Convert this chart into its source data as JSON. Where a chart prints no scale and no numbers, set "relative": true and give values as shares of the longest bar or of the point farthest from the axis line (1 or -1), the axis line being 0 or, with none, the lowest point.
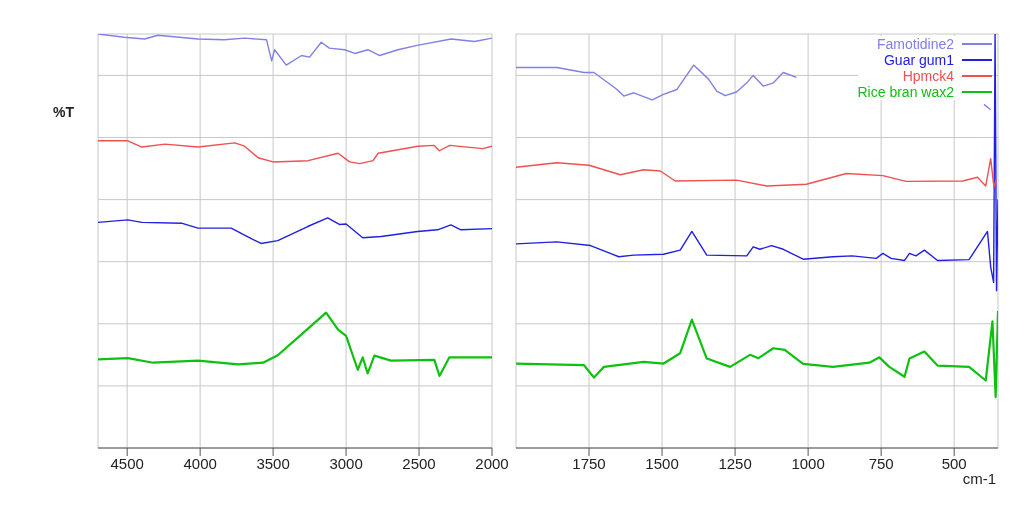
{
  "chart_data": [
    {
      "type": "line",
      "relative": true,
      "ylabel": "%T",
      "xlim": [
        4700,
        2000
      ],
      "xticks": [
        4500,
        4000,
        3500,
        3000,
        2500,
        2000
      ],
      "grid": true,
      "marker": "none",
      "tick_labels": "x",
      "series": [
        {
          "color": "#8080e8",
          "x": [
            4700,
            4520,
            4380,
            4290,
            4015,
            3835,
            3695,
            3545,
            3510,
            3490,
            3410,
            3305,
            3250,
            3170,
            3115,
            3010,
            2940,
            2850,
            2770,
            2645,
            2505,
            2280,
            2120,
            2000
          ],
          "values": [
            1,
            0.992,
            0.988,
            0.997,
            0.988,
            0.986,
            0.99,
            0.986,
            0.935,
            0.962,
            0.925,
            0.948,
            0.944,
            0.98,
            0.966,
            0.962,
            0.953,
            0.962,
            0.948,
            0.962,
            0.973,
            0.988,
            0.982,
            0.99
          ]
        },
        {
          "color": "#2020e0",
          "x": [
            4700,
            4495,
            4400,
            4128,
            4015,
            3787,
            3673,
            3582,
            3468,
            3263,
            3126,
            3046,
            3000,
            2886,
            2760,
            2510,
            2373,
            2282,
            2213,
            2000
          ],
          "values": [
            0.545,
            0.551,
            0.545,
            0.543,
            0.531,
            0.531,
            0.51,
            0.494,
            0.501,
            0.535,
            0.556,
            0.54,
            0.541,
            0.508,
            0.511,
            0.523,
            0.527,
            0.539,
            0.527,
            0.53
          ]
        },
        {
          "color": "#f05050",
          "x": [
            4700,
            4495,
            4400,
            4242,
            4015,
            3763,
            3695,
            3603,
            3500,
            3260,
            3055,
            2975,
            2907,
            2815,
            2780,
            2507,
            2398,
            2360,
            2290,
            2063,
            2000
          ],
          "values": [
            0.742,
            0.742,
            0.727,
            0.734,
            0.727,
            0.737,
            0.729,
            0.701,
            0.691,
            0.694,
            0.712,
            0.691,
            0.687,
            0.694,
            0.712,
            0.729,
            0.731,
            0.718,
            0.731,
            0.723,
            0.729
          ]
        },
        {
          "color": "#10c010",
          "x": [
            4700,
            4495,
            4322,
            4015,
            3740,
            3569,
            3468,
            3284,
            3137,
            3055,
            3000,
            2920,
            2886,
            2852,
            2806,
            2692,
            2395,
            2360,
            2292,
            2000
          ],
          "values": [
            0.214,
            0.217,
            0.206,
            0.211,
            0.202,
            0.206,
            0.224,
            0.281,
            0.327,
            0.286,
            0.271,
            0.189,
            0.219,
            0.18,
            0.223,
            0.211,
            0.213,
            0.174,
            0.219,
            0.219
          ]
        }
      ]
    },
    {
      "type": "line",
      "relative": true,
      "xlabel": "cm-1",
      "xlim": [
        2000,
        350
      ],
      "xticks": [
        1750,
        1500,
        1250,
        1000,
        750,
        500
      ],
      "grid": true,
      "marker": "none",
      "tick_labels": "x",
      "legend": "top right",
      "series": [
        {
          "name": "Famotidine2",
          "color": "#8080e8",
          "x": [
            2000,
            1860,
            1767,
            1733,
            1654,
            1631,
            1597,
            1534,
            1495,
            1449,
            1392,
            1341,
            1313,
            1284,
            1245,
            1210,
            1188,
            1153,
            1119,
            1085,
            1040,
            1000,
            420,
            398,
            375
          ],
          "values": [
            0.919,
            0.919,
            0.907,
            0.907,
            0.866,
            0.85,
            0.858,
            0.841,
            0.854,
            0.866,
            0.925,
            0.891,
            0.862,
            0.851,
            0.86,
            0.882,
            0.9,
            0.874,
            0.882,
            0.907,
            0.895,
            null,
            null,
            0.83,
            0.817
          ]
        },
        {
          "name": "Guar gum1",
          "color": "#2020e0",
          "x": [
            2000,
            1860,
            1745,
            1648,
            1597,
            1495,
            1438,
            1398,
            1347,
            1210,
            1188,
            1165,
            1125,
            1085,
            1017,
            915,
            849,
            767,
            744,
            716,
            670,
            653,
            631,
            602,
            557,
            449,
            386,
            375,
            365,
            360,
            355,
            350
          ],
          "values": [
            0.493,
            0.498,
            0.489,
            0.462,
            0.466,
            0.468,
            0.478,
            0.523,
            0.466,
            0.464,
            0.486,
            0.48,
            0.489,
            0.48,
            0.456,
            0.462,
            0.464,
            0.458,
            0.47,
            0.458,
            0.453,
            0.47,
            0.464,
            0.478,
            0.453,
            0.455,
            0.523,
            0.437,
            0.4,
            1.0,
            0.38,
            0.6
          ]
        },
        {
          "name": "Hpmck4",
          "color": "#f05050",
          "x": [
            2000,
            1860,
            1750,
            1643,
            1563,
            1506,
            1455,
            1245,
            1142,
            1006,
            869,
            744,
            665,
            471,
            420,
            392,
            375,
            364,
            355
          ],
          "values": [
            0.678,
            0.689,
            0.683,
            0.66,
            0.672,
            0.669,
            0.645,
            0.647,
            0.633,
            0.637,
            0.663,
            0.658,
            0.644,
            0.645,
            0.654,
            0.633,
            0.699,
            0.63,
            0.65
          ]
        },
        {
          "name": "Rice bran wax2",
          "color": "#10c010",
          "x": [
            2000,
            1767,
            1733,
            1699,
            1563,
            1495,
            1438,
            1398,
            1347,
            1267,
            1199,
            1170,
            1119,
            1080,
            1017,
            915,
            790,
            756,
            722,
            670,
            653,
            602,
            557,
            449,
            392,
            369,
            358,
            350
          ],
          "values": [
            0.204,
            0.2,
            0.17,
            0.196,
            0.208,
            0.204,
            0.229,
            0.31,
            0.216,
            0.196,
            0.225,
            0.217,
            0.241,
            0.237,
            0.203,
            0.196,
            0.206,
            0.219,
            0.196,
            0.172,
            0.216,
            0.233,
            0.199,
            0.196,
            0.163,
            0.306,
            0.123,
            0.331
          ]
        }
      ]
    }
  ]
}
